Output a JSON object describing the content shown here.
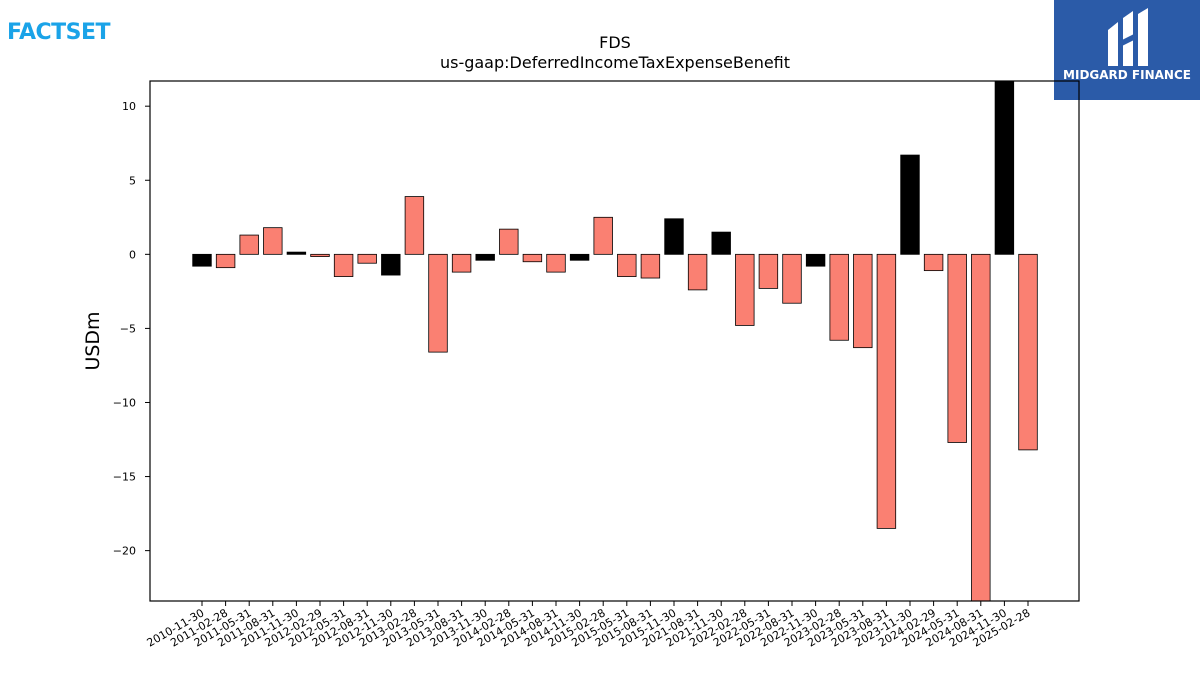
{
  "branding": {
    "factset": "FACTSET",
    "midgard": "MIDGARD FINANCE"
  },
  "colors": {
    "positive": "#000000",
    "negative": "#fa8072",
    "badge": "#2b5ba8",
    "factset": "#1aa3e8"
  },
  "chart_data": {
    "type": "bar",
    "title": "FDS",
    "subtitle": "us-gaap:DeferredIncomeTaxExpenseBenefit",
    "xlabel": "",
    "ylabel": "USDm",
    "ylim": [
      -23.4,
      11.7
    ],
    "yticks": [
      10,
      5,
      0,
      -5,
      -10,
      -15,
      -20
    ],
    "grid": false,
    "categories": [
      "2010-11-30",
      "2011-02-28",
      "2011-05-31",
      "2011-08-31",
      "2011-11-30",
      "2012-02-29",
      "2012-05-31",
      "2012-08-31",
      "2012-11-30",
      "2013-02-28",
      "2013-05-31",
      "2013-08-31",
      "2013-11-30",
      "2014-02-28",
      "2014-05-31",
      "2014-08-31",
      "2014-11-30",
      "2015-02-28",
      "2015-05-31",
      "2015-08-31",
      "2015-11-30",
      "2021-08-31",
      "2021-11-30",
      "2022-02-28",
      "2022-05-31",
      "2022-08-31",
      "2022-11-30",
      "2023-02-28",
      "2023-05-31",
      "2023-08-31",
      "2023-11-30",
      "2024-02-29",
      "2024-05-31",
      "2024-08-31",
      "2024-11-30",
      "2025-02-28"
    ],
    "values": [
      -0.8,
      -0.9,
      1.3,
      1.8,
      0.15,
      -0.15,
      -1.5,
      -0.6,
      -1.4,
      3.9,
      -6.6,
      -1.2,
      -0.4,
      1.7,
      -0.5,
      -1.2,
      -0.4,
      2.5,
      -1.5,
      -1.6,
      2.4,
      -2.4,
      1.5,
      -4.8,
      -2.3,
      -3.3,
      -0.8,
      -5.8,
      -6.3,
      -18.5,
      6.7,
      -1.1,
      -12.7,
      -23.4,
      11.7,
      -13.2
    ],
    "bar_colors": [
      "#000000",
      "#fa8072",
      "#fa8072",
      "#fa8072",
      "#000000",
      "#fa8072",
      "#fa8072",
      "#fa8072",
      "#000000",
      "#fa8072",
      "#fa8072",
      "#fa8072",
      "#000000",
      "#fa8072",
      "#fa8072",
      "#fa8072",
      "#000000",
      "#fa8072",
      "#fa8072",
      "#fa8072",
      "#000000",
      "#fa8072",
      "#000000",
      "#fa8072",
      "#fa8072",
      "#fa8072",
      "#000000",
      "#fa8072",
      "#fa8072",
      "#fa8072",
      "#000000",
      "#fa8072",
      "#fa8072",
      "#fa8072",
      "#000000",
      "#fa8072"
    ]
  }
}
